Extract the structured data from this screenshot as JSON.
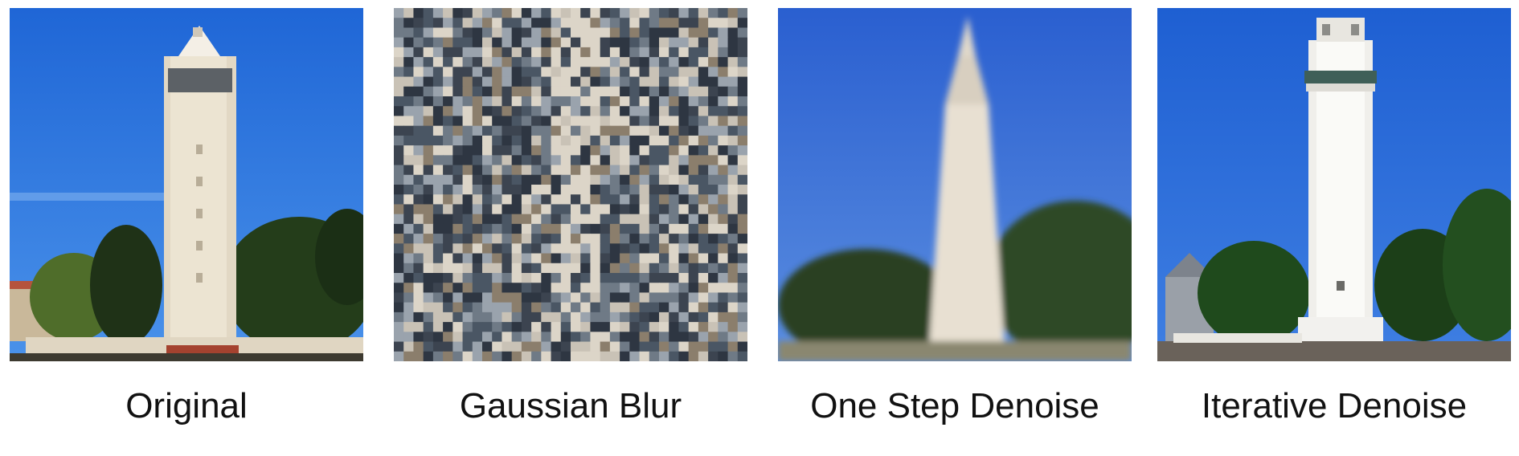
{
  "figure": {
    "panels": [
      {
        "caption": "Original",
        "subject": "tower-image",
        "colors": {
          "sky": "#2f78de",
          "tower": "#e6dcc8",
          "trees": "#2b4a22"
        }
      },
      {
        "caption": "Gaussian Blur",
        "subject": "noise-image",
        "colors": {
          "base": "#6f7a86",
          "light": "#c9c2b6",
          "dark": "#2e3642"
        }
      },
      {
        "caption": "One Step Denoise",
        "subject": "denoised-tower-image",
        "colors": {
          "sky": "#3a6fd8",
          "tower": "#e8e0d2",
          "trees": "#2c4426"
        }
      },
      {
        "caption": "Iterative Denoise",
        "subject": "iterative-tower-image",
        "colors": {
          "sky": "#2a6ad6",
          "tower": "#f0efeb",
          "trees": "#1f4d1e"
        }
      }
    ]
  }
}
